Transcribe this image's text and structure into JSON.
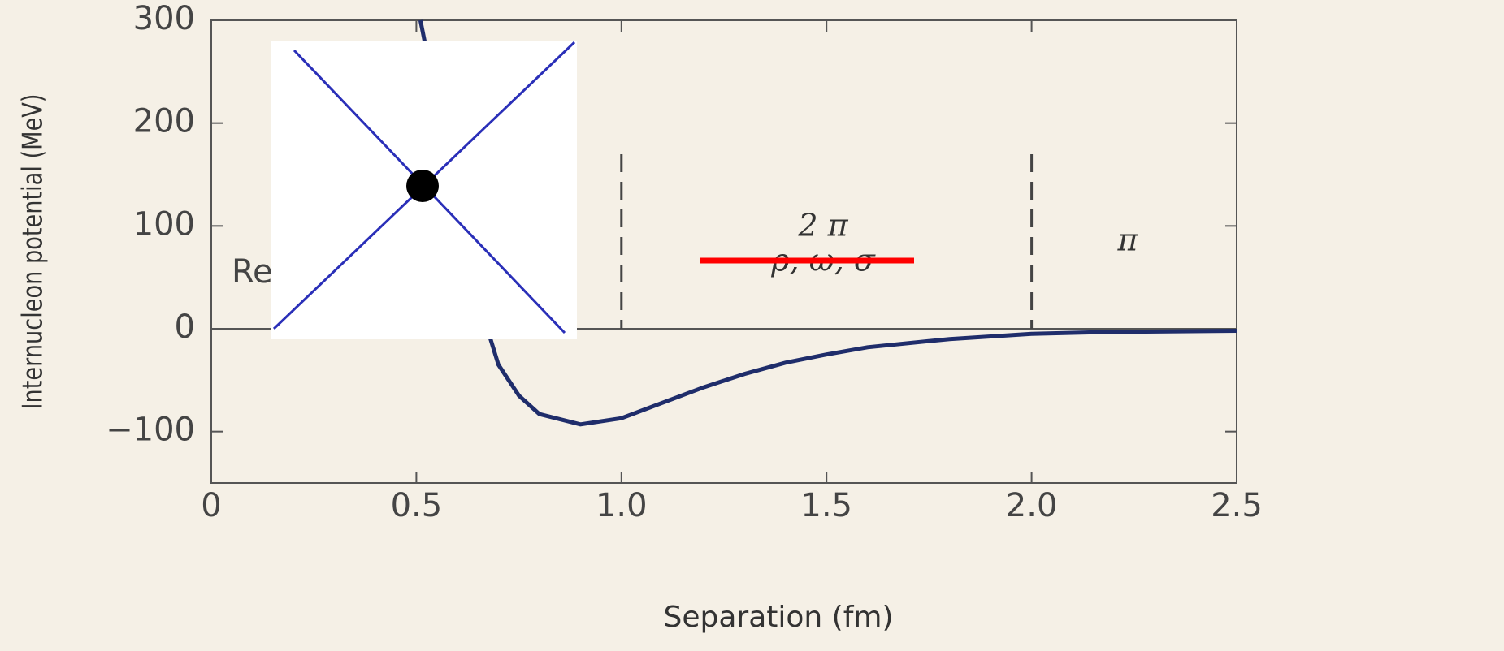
{
  "chart_data": {
    "type": "line",
    "x_label": "Separation (fm)",
    "y_label": "Internucleon potential (MeV)",
    "x": [
      0.51,
      0.55,
      0.6,
      0.65,
      0.7,
      0.75,
      0.8,
      0.9,
      1.0,
      1.1,
      1.2,
      1.3,
      1.4,
      1.5,
      1.6,
      1.8,
      2.0,
      2.2,
      2.5
    ],
    "series": [
      {
        "color": "#1f2d6b",
        "values": [
          300,
          220,
          120,
          30,
          -35,
          -65,
          -83,
          -93,
          -87,
          -72,
          -57,
          -44,
          -33,
          -25,
          -18,
          -10,
          -5,
          -3,
          -2
        ]
      }
    ],
    "xlim": [
      0,
      2.5
    ],
    "ylim": [
      -150,
      300
    ],
    "xticks": [
      0,
      0.5,
      {
        "value": 1.0,
        "label": "1.0"
      },
      1.5,
      {
        "value": 2.0,
        "label": "2.0"
      },
      2.5
    ],
    "yticks": [
      300,
      200,
      100,
      0,
      {
        "value": -100,
        "label": "−100"
      }
    ],
    "region_boundaries": [
      1.0,
      2.0
    ],
    "annotations": [
      "Re",
      "2 π",
      "ρ, ω, σ",
      "π"
    ]
  }
}
